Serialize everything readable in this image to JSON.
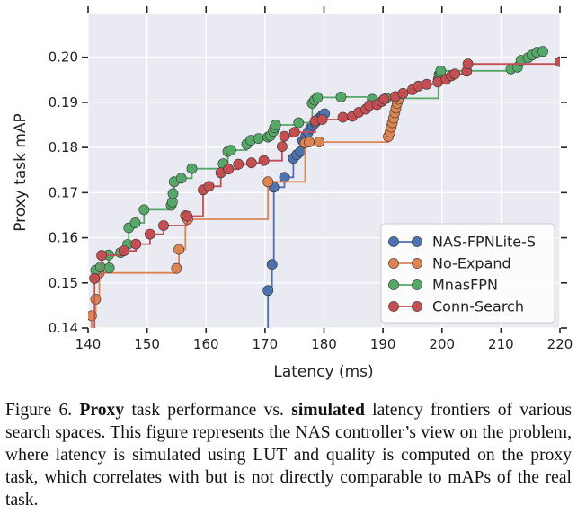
{
  "chart_data": {
    "type": "line",
    "xlabel": "Latency (ms)",
    "ylabel": "Proxy task mAP",
    "xlim": [
      140,
      220
    ],
    "ylim": [
      0.14,
      0.2095
    ],
    "xticks": [
      "140",
      "150",
      "160",
      "170",
      "180",
      "190",
      "200",
      "210",
      "220"
    ],
    "yticks": [
      "0.14",
      "0.15",
      "0.16",
      "0.17",
      "0.18",
      "0.19",
      "0.20"
    ],
    "grid": true,
    "background": "#eaeaf2",
    "legend_position": "lower-right",
    "step_lines": true,
    "series": [
      {
        "name": "NAS-FPNLite-S",
        "color": "#4c72b0",
        "points": [
          [
            170.3,
            0.1375
          ],
          [
            170.5,
            0.1483
          ],
          [
            171.2,
            0.1541
          ],
          [
            171.5,
            0.1712
          ],
          [
            173.3,
            0.1734
          ],
          [
            174.8,
            0.1776
          ],
          [
            175.4,
            0.1784
          ],
          [
            176.0,
            0.1791
          ],
          [
            176.4,
            0.1815
          ],
          [
            176.9,
            0.1825
          ],
          [
            177.3,
            0.1834
          ],
          [
            177.7,
            0.1842
          ],
          [
            178.1,
            0.1849
          ],
          [
            178.5,
            0.1855
          ],
          [
            178.9,
            0.1861
          ],
          [
            179.3,
            0.1866
          ],
          [
            179.7,
            0.1871
          ],
          [
            180.1,
            0.1875
          ]
        ]
      },
      {
        "name": "No-Expand",
        "color": "#dd8452",
        "points": [
          [
            140.3,
            0.1375
          ],
          [
            140.6,
            0.1427
          ],
          [
            141.3,
            0.1464
          ],
          [
            141.9,
            0.1522
          ],
          [
            155.0,
            0.1532
          ],
          [
            155.4,
            0.1574
          ],
          [
            156.5,
            0.1649
          ],
          [
            156.9,
            0.1641
          ],
          [
            170.5,
            0.1724
          ],
          [
            176.8,
            0.181
          ],
          [
            177.5,
            0.1812
          ],
          [
            179.2,
            0.1812
          ],
          [
            190.9,
            0.1824
          ],
          [
            191.2,
            0.1834
          ],
          [
            191.4,
            0.1845
          ],
          [
            191.6,
            0.1855
          ],
          [
            191.8,
            0.1865
          ],
          [
            192.0,
            0.1877
          ],
          [
            192.2,
            0.1887
          ],
          [
            192.4,
            0.1898
          ],
          [
            192.6,
            0.1907
          ]
        ]
      },
      {
        "name": "MnasFPN",
        "color": "#55a868",
        "points": [
          [
            141.3,
            0.1528
          ],
          [
            142.1,
            0.1535
          ],
          [
            143.6,
            0.1533
          ],
          [
            143.5,
            0.1562
          ],
          [
            145.5,
            0.1567
          ],
          [
            146.7,
            0.1585
          ],
          [
            146.9,
            0.1622
          ],
          [
            148.0,
            0.1633
          ],
          [
            149.5,
            0.1662
          ],
          [
            154.1,
            0.1672
          ],
          [
            154.3,
            0.1679
          ],
          [
            154.4,
            0.1698
          ],
          [
            154.6,
            0.1724
          ],
          [
            155.8,
            0.1732
          ],
          [
            157.6,
            0.1753
          ],
          [
            162.9,
            0.1764
          ],
          [
            163.7,
            0.1791
          ],
          [
            164.2,
            0.1794
          ],
          [
            166.9,
            0.1807
          ],
          [
            167.6,
            0.1816
          ],
          [
            168.9,
            0.182
          ],
          [
            170.5,
            0.1823
          ],
          [
            170.9,
            0.1826
          ],
          [
            171.4,
            0.1836
          ],
          [
            171.6,
            0.1844
          ],
          [
            171.8,
            0.185
          ],
          [
            175.7,
            0.1855
          ],
          [
            178.0,
            0.1898
          ],
          [
            178.4,
            0.1905
          ],
          [
            178.9,
            0.1911
          ],
          [
            182.9,
            0.1912
          ],
          [
            188.2,
            0.1907
          ],
          [
            190.6,
            0.1909
          ],
          [
            199.4,
            0.1951
          ],
          [
            199.5,
            0.1961
          ],
          [
            199.7,
            0.1965
          ],
          [
            199.8,
            0.197
          ],
          [
            211.7,
            0.1974
          ],
          [
            212.8,
            0.1978
          ],
          [
            213.4,
            0.1993
          ],
          [
            214.6,
            0.1999
          ],
          [
            215.3,
            0.2005
          ],
          [
            216.1,
            0.2011
          ],
          [
            217.1,
            0.2013
          ]
        ]
      },
      {
        "name": "Conn-Search",
        "color": "#c44e52",
        "points": [
          [
            141.0,
            0.1375
          ],
          [
            141.1,
            0.151
          ],
          [
            142.3,
            0.1561
          ],
          [
            146.1,
            0.1571
          ],
          [
            148.1,
            0.1586
          ],
          [
            150.5,
            0.1608
          ],
          [
            152.8,
            0.1627
          ],
          [
            156.8,
            0.1648
          ],
          [
            159.5,
            0.1706
          ],
          [
            160.5,
            0.1714
          ],
          [
            162.5,
            0.1744
          ],
          [
            163.8,
            0.1752
          ],
          [
            165.5,
            0.1763
          ],
          [
            167.7,
            0.1766
          ],
          [
            169.8,
            0.1771
          ],
          [
            172.9,
            0.1802
          ],
          [
            173.3,
            0.1825
          ],
          [
            175.0,
            0.1834
          ],
          [
            178.5,
            0.1859
          ],
          [
            179.7,
            0.1862
          ],
          [
            183.2,
            0.1867
          ],
          [
            184.8,
            0.1869
          ],
          [
            185.9,
            0.1878
          ],
          [
            187.1,
            0.1885
          ],
          [
            187.7,
            0.1893
          ],
          [
            189.0,
            0.1895
          ],
          [
            189.8,
            0.1902
          ],
          [
            190.2,
            0.1907
          ],
          [
            192.1,
            0.1913
          ],
          [
            193.4,
            0.192
          ],
          [
            195.0,
            0.1928
          ],
          [
            196.0,
            0.1936
          ],
          [
            197.4,
            0.194
          ],
          [
            199.3,
            0.1945
          ],
          [
            200.7,
            0.1951
          ],
          [
            201.6,
            0.1959
          ],
          [
            202.2,
            0.1963
          ],
          [
            204.2,
            0.1969
          ],
          [
            204.4,
            0.1985
          ],
          [
            220.0,
            0.199
          ]
        ]
      }
    ]
  },
  "caption": {
    "figure_label": "Figure 6.",
    "w1": "Proxy",
    "t1": " task performance vs. ",
    "w2": "simulated",
    "t2": " latency frontiers of various search spaces.  This figure represents the NAS controller’s view on the problem, where latency is simulated using LUT and quality is computed on the proxy task, which correlates with but is not directly comparable to mAPs of the real task."
  }
}
